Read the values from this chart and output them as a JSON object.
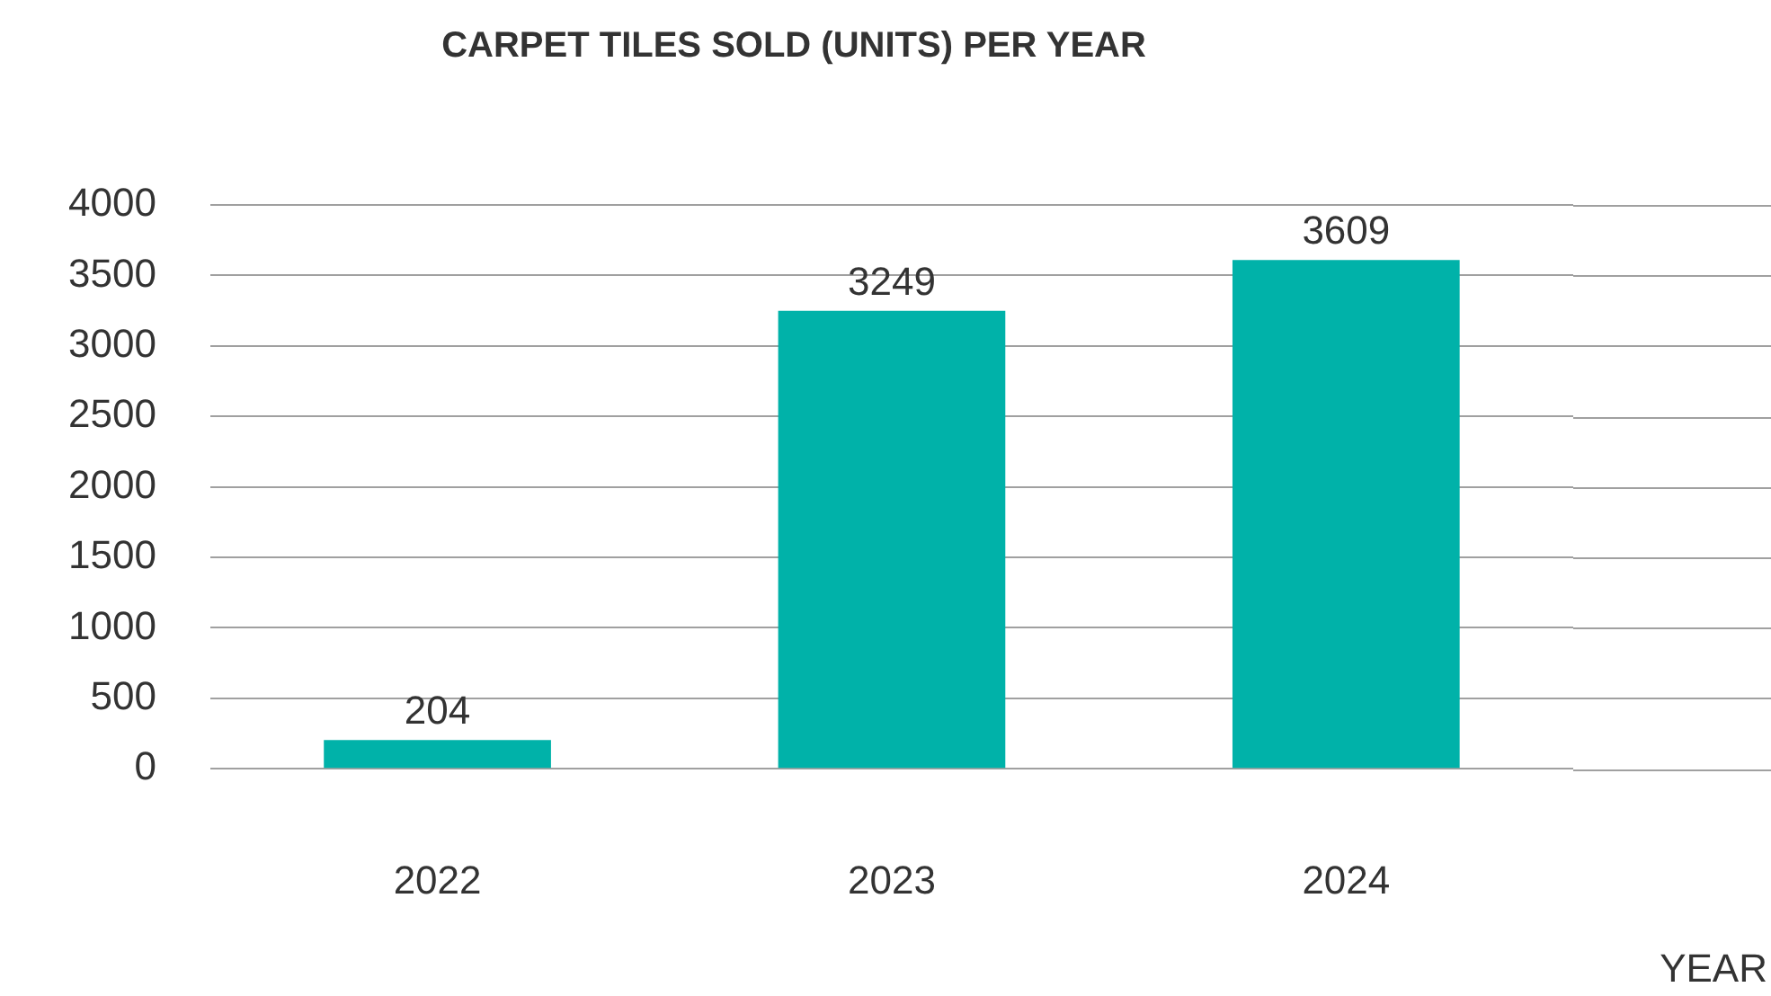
{
  "chart_data": {
    "type": "bar",
    "title": "CARPET TILES SOLD (UNITS) PER YEAR",
    "xlabel": "YEAR",
    "categories": [
      "2022",
      "2023",
      "2024"
    ],
    "values": [
      204,
      3249,
      3609
    ],
    "color": "#00b2a9",
    "ylim": [
      0,
      4000
    ],
    "yticks": [
      0,
      500,
      1000,
      1500,
      2000,
      2500,
      3000,
      3500,
      4000
    ],
    "grid": "y",
    "data_labels": true
  }
}
